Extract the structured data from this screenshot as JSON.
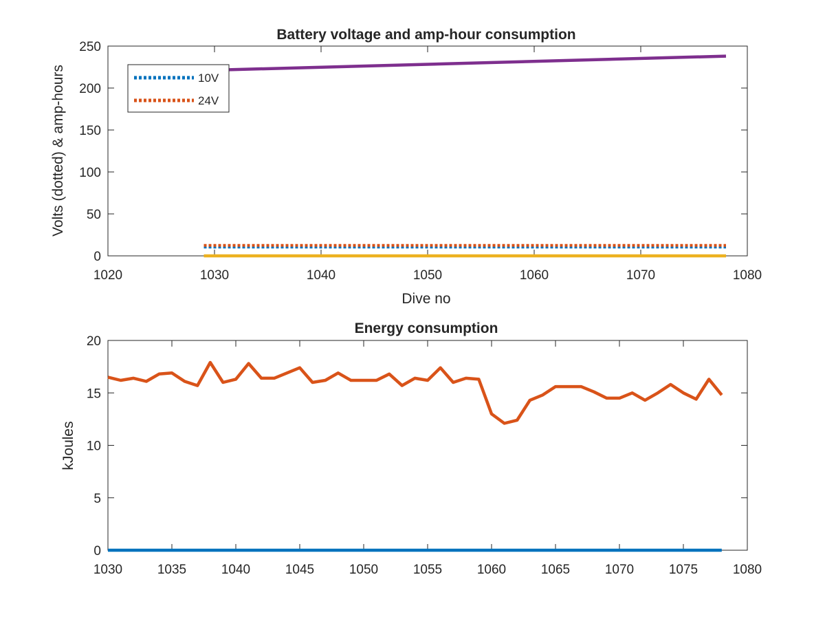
{
  "chart_data": [
    {
      "type": "line",
      "title": "Battery voltage and amp-hour consumption",
      "xlabel": "Dive no",
      "ylabel": "Volts (dotted) & amp-hours",
      "xlim": [
        1020,
        1080
      ],
      "ylim": [
        0,
        250
      ],
      "xticks": [
        1020,
        1030,
        1040,
        1050,
        1060,
        1070,
        1080
      ],
      "yticks": [
        0,
        50,
        100,
        150,
        200,
        250
      ],
      "grid": false,
      "legend_position": "top-left",
      "series": [
        {
          "name": "10V",
          "style": "dotted",
          "color": "#0072BD",
          "x": [
            1029,
            1078
          ],
          "y": [
            10.5,
            10.5
          ]
        },
        {
          "name": "24V",
          "style": "dotted",
          "color": "#D95319",
          "x": [
            1029,
            1078
          ],
          "y": [
            12.5,
            12.5
          ]
        },
        {
          "style": "solid",
          "color": "#EDB120",
          "x": [
            1029,
            1078
          ],
          "y": [
            0,
            0
          ]
        },
        {
          "style": "solid",
          "color": "#7E2F8E",
          "x": [
            1029,
            1078
          ],
          "y": [
            221,
            238
          ]
        }
      ]
    },
    {
      "type": "line",
      "title": "Energy consumption",
      "xlabel": "",
      "ylabel": "kJoules",
      "xlim": [
        1030,
        1080
      ],
      "ylim": [
        0,
        20
      ],
      "xticks": [
        1030,
        1035,
        1040,
        1045,
        1050,
        1055,
        1060,
        1065,
        1070,
        1075,
        1080
      ],
      "yticks": [
        0,
        5,
        10,
        15,
        20
      ],
      "grid": false,
      "series": [
        {
          "style": "solid",
          "color": "#0072BD",
          "x": [
            1030,
            1078
          ],
          "y": [
            0,
            0
          ]
        },
        {
          "style": "solid",
          "color": "#D95319",
          "x": [
            1030,
            1031,
            1032,
            1033,
            1034,
            1035,
            1036,
            1037,
            1038,
            1039,
            1040,
            1041,
            1042,
            1043,
            1044,
            1045,
            1046,
            1047,
            1048,
            1049,
            1050,
            1051,
            1052,
            1053,
            1054,
            1055,
            1056,
            1057,
            1058,
            1059,
            1060,
            1061,
            1062,
            1063,
            1064,
            1065,
            1066,
            1067,
            1068,
            1069,
            1070,
            1071,
            1072,
            1073,
            1074,
            1075,
            1076,
            1077,
            1078
          ],
          "y": [
            16.5,
            16.2,
            16.4,
            16.1,
            16.8,
            16.9,
            16.1,
            15.7,
            17.9,
            16.0,
            16.3,
            17.8,
            16.4,
            16.4,
            16.9,
            17.4,
            16.0,
            16.2,
            16.9,
            16.2,
            16.2,
            16.2,
            16.8,
            15.7,
            16.4,
            16.2,
            17.4,
            16.0,
            16.4,
            16.3,
            13.0,
            12.1,
            12.4,
            14.3,
            14.8,
            15.6,
            15.6,
            15.6,
            15.1,
            14.5,
            14.5,
            15.0,
            14.3,
            15.0,
            15.8,
            15.0,
            14.4,
            16.3,
            14.8
          ]
        }
      ]
    }
  ]
}
